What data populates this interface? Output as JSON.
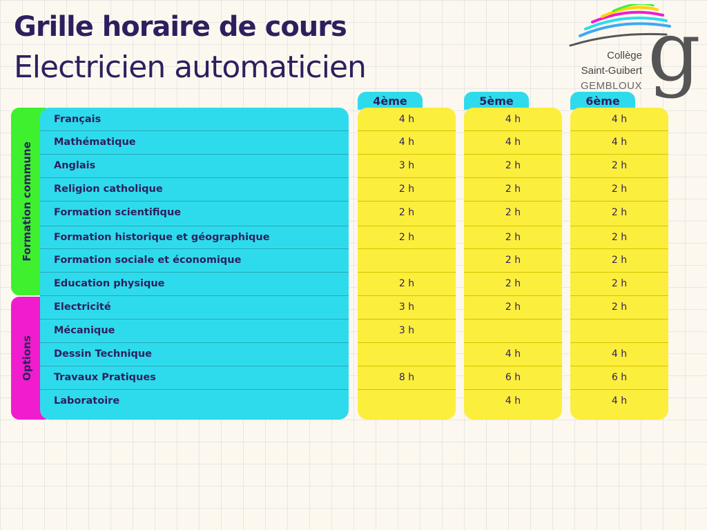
{
  "header": {
    "title": "Grille horaire de cours",
    "subtitle": "Electricien automaticien"
  },
  "logo": {
    "line1": "Collège",
    "line2": "Saint-Guibert",
    "line3": "GEMBLOUX",
    "monogram": "g"
  },
  "groups": {
    "common": "Formation commune",
    "options": "Options"
  },
  "years": [
    "4ème",
    "5ème",
    "6ème"
  ],
  "subjects": [
    "Français",
    "Mathématique",
    "Anglais",
    "Religion catholique",
    "Formation scientifique",
    "Formation historique et géographique",
    "Formation sociale et économique",
    "Education physique",
    "Electricité",
    "Mécanique",
    "Dessin Technique",
    "Travaux Pratiques",
    "Laboratoire"
  ],
  "hours": [
    [
      "4 h",
      "4 h",
      "3 h",
      "2 h",
      "2 h",
      "2 h",
      "",
      "2 h",
      "3 h",
      "3 h",
      "",
      "8 h",
      ""
    ],
    [
      "4 h",
      "4 h",
      "2 h",
      "2 h",
      "2 h",
      "2 h",
      "2 h",
      "2 h",
      "2 h",
      "",
      "4 h",
      "6 h",
      "4 h"
    ],
    [
      "4 h",
      "4 h",
      "2 h",
      "2 h",
      "2 h",
      "2 h",
      "2 h",
      "2 h",
      "2 h",
      "",
      "4 h",
      "6 h",
      "4 h"
    ]
  ],
  "colors": {
    "background": "#fcf8ef",
    "ink": "#2d1f5e",
    "subjects_panel": "#2edbec",
    "hours_columns": "#fcee3c",
    "group_common": "#3ff02f",
    "group_options": "#f01cce"
  }
}
